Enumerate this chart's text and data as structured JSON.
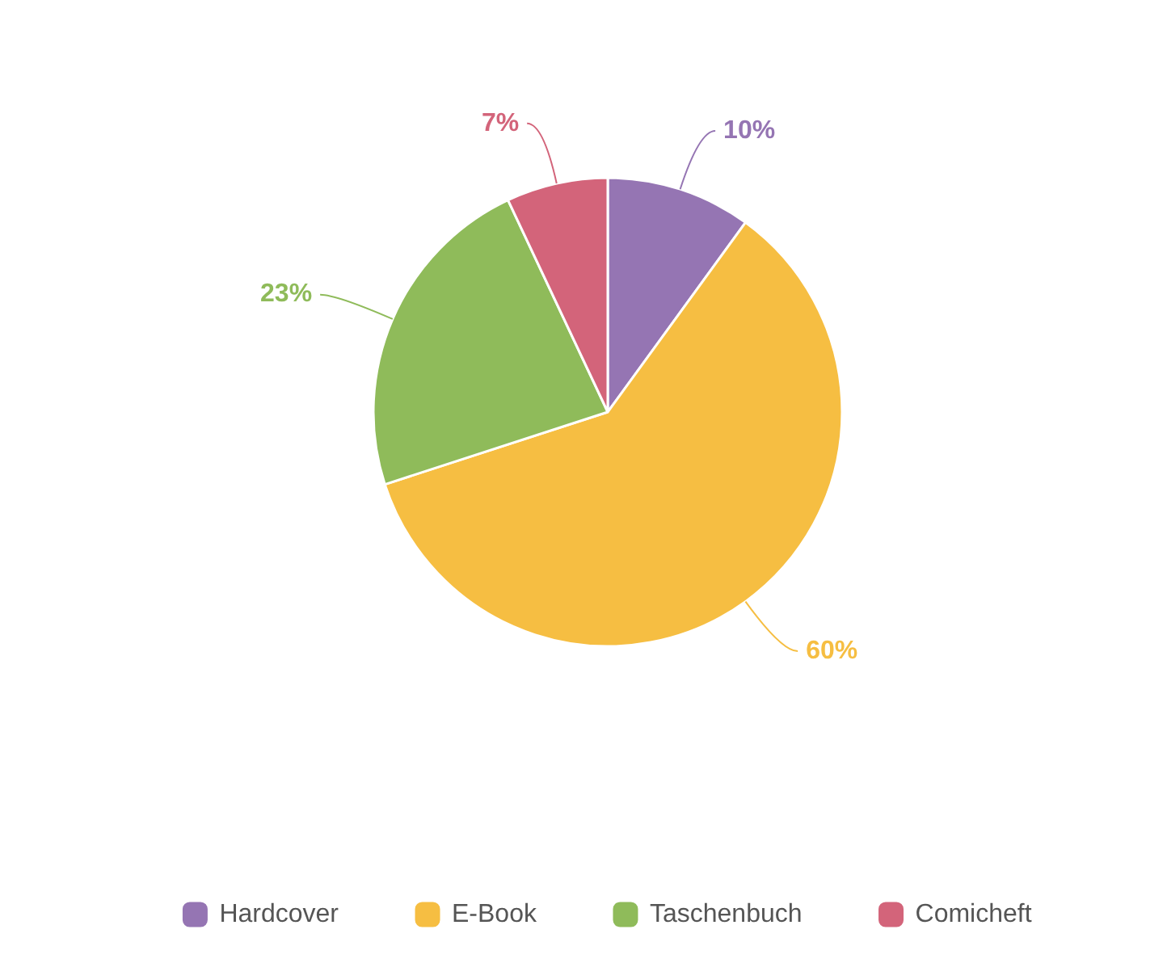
{
  "chart_data": {
    "type": "pie",
    "categories": [
      "Hardcover",
      "E-Book",
      "Taschenbuch",
      "Comicheft"
    ],
    "values": [
      10,
      60,
      23,
      7
    ],
    "colors": [
      "#9575b3",
      "#f6be42",
      "#8fbb5a",
      "#d3647a"
    ],
    "value_labels": [
      "10%",
      "60%",
      "23%",
      "7%"
    ],
    "legend": "bottom"
  }
}
